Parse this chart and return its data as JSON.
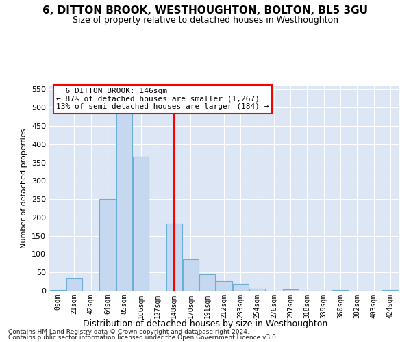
{
  "title": "6, DITTON BROOK, WESTHOUGHTON, BOLTON, BL5 3GU",
  "subtitle": "Size of property relative to detached houses in Westhoughton",
  "xlabel": "Distribution of detached houses by size in Westhoughton",
  "ylabel": "Number of detached properties",
  "footnote1": "Contains HM Land Registry data © Crown copyright and database right 2024.",
  "footnote2": "Contains public sector information licensed under the Open Government Licence v3.0.",
  "bin_labels": [
    "0sqm",
    "21sqm",
    "42sqm",
    "64sqm",
    "85sqm",
    "106sqm",
    "127sqm",
    "148sqm",
    "170sqm",
    "191sqm",
    "212sqm",
    "233sqm",
    "254sqm",
    "276sqm",
    "297sqm",
    "318sqm",
    "339sqm",
    "360sqm",
    "382sqm",
    "403sqm",
    "424sqm"
  ],
  "bar_values": [
    1,
    33,
    0,
    250,
    500,
    365,
    0,
    183,
    85,
    45,
    27,
    18,
    5,
    0,
    3,
    0,
    0,
    1,
    0,
    0,
    1
  ],
  "bar_color": "#c5d8f0",
  "bar_edge_color": "#6baed6",
  "vline_x": 7.0,
  "annotation_title": "6 DITTON BROOK: 146sqm",
  "annotation_line1": "← 87% of detached houses are smaller (1,267)",
  "annotation_line2": "13% of semi-detached houses are larger (184) →",
  "ylim": [
    0,
    560
  ],
  "yticks": [
    0,
    50,
    100,
    150,
    200,
    250,
    300,
    350,
    400,
    450,
    500,
    550
  ],
  "bg_color": "#dce6f5",
  "grid_color": "#ffffff"
}
